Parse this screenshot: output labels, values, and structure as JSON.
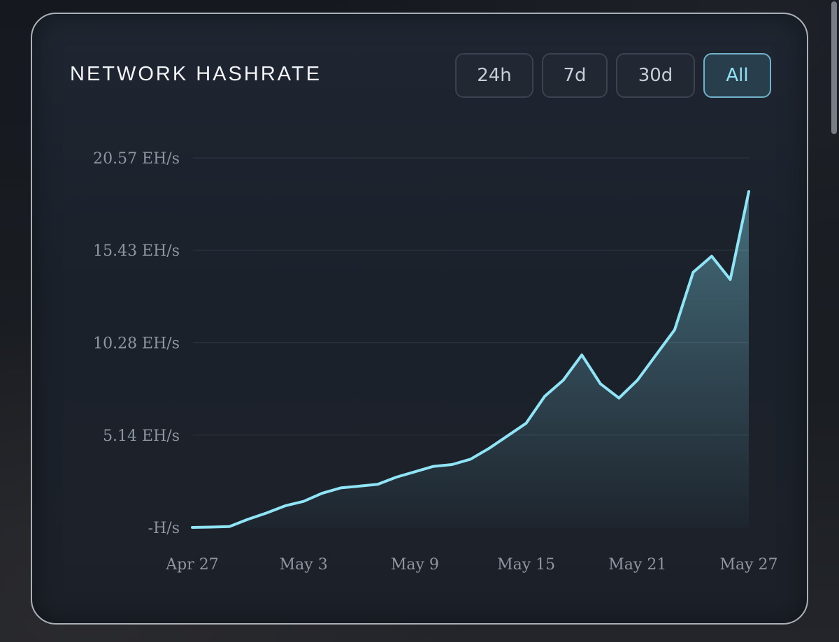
{
  "header": {
    "title": "NETWORK HASHRATE"
  },
  "range_buttons": [
    {
      "label": "24h",
      "active": false
    },
    {
      "label": "7d",
      "active": false
    },
    {
      "label": "30d",
      "active": false
    },
    {
      "label": "All",
      "active": true
    }
  ],
  "colors": {
    "line": "#8fe4f6",
    "accent": "#6fb2c9",
    "grid": "#2f3641"
  },
  "chart_data": {
    "type": "area",
    "title": "NETWORK HASHRATE",
    "xlabel": "",
    "ylabel": "",
    "y_unit": "EH/s",
    "ylim": [
      0,
      20.57
    ],
    "y_ticks": [
      {
        "value": 0,
        "label": "-H/s"
      },
      {
        "value": 5.14,
        "label": "5.14 EH/s"
      },
      {
        "value": 10.28,
        "label": "10.28 EH/s"
      },
      {
        "value": 15.43,
        "label": "15.43 EH/s"
      },
      {
        "value": 20.57,
        "label": "20.57 EH/s"
      }
    ],
    "x_ticks": [
      "Apr 27",
      "May 3",
      "May 9",
      "May 15",
      "May 21",
      "May 27"
    ],
    "grid": true,
    "legend": "none",
    "series": [
      {
        "x": [
          "Apr 27",
          "Apr 28",
          "Apr 29",
          "Apr 30",
          "May 1",
          "May 2",
          "May 3",
          "May 4",
          "May 5",
          "May 6",
          "May 7",
          "May 8",
          "May 9",
          "May 10",
          "May 11",
          "May 12",
          "May 13",
          "May 14",
          "May 15",
          "May 16",
          "May 17",
          "May 18",
          "May 19",
          "May 20",
          "May 21",
          "May 22",
          "May 23",
          "May 24",
          "May 25",
          "May 26",
          "May 27"
        ],
        "values": [
          0.0,
          0.02,
          0.05,
          0.45,
          0.8,
          1.2,
          1.45,
          1.9,
          2.2,
          2.3,
          2.4,
          2.8,
          3.1,
          3.4,
          3.5,
          3.8,
          4.4,
          5.1,
          5.8,
          7.3,
          8.2,
          9.6,
          8.0,
          7.2,
          8.2,
          9.6,
          11.0,
          14.2,
          15.1,
          13.8,
          18.7
        ]
      }
    ]
  }
}
